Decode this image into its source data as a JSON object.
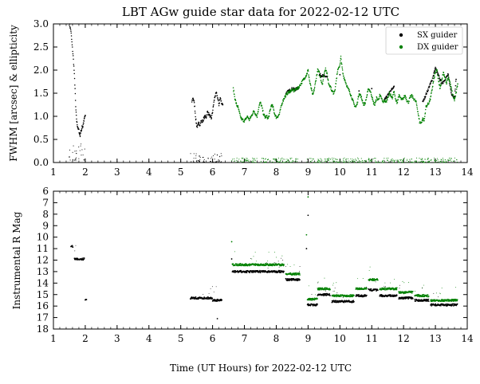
{
  "title": "LBT AGw guide star data for 2022-02-12 UTC",
  "xlabel": "Time (UT Hours) for 2022-02-12 UTC",
  "legend": {
    "sx_label": "SX guider",
    "dx_label": "DX guider"
  },
  "colors": {
    "sx": "#000000",
    "dx": "#008000"
  },
  "chart_data": [
    {
      "type": "scatter",
      "panel": "top",
      "ylabel": "FWHM [arcsec] & ellipticity",
      "xlim": [
        1,
        14
      ],
      "ylim": [
        0.0,
        3.0
      ],
      "x_ticks": [
        "1",
        "2",
        "3",
        "4",
        "5",
        "6",
        "7",
        "8",
        "9",
        "10",
        "11",
        "12",
        "13",
        "14"
      ],
      "y_ticks": [
        "0.0",
        "0.5",
        "1.0",
        "1.5",
        "2.0",
        "2.5",
        "3.0"
      ],
      "legend_position": "top-right",
      "series": [
        {
          "name": "SX guider",
          "kind": "fwhm",
          "points": [
            [
              1.5,
              3.0
            ],
            [
              1.55,
              2.85
            ],
            [
              1.58,
              2.6
            ],
            [
              1.62,
              2.3
            ],
            [
              1.65,
              2.0
            ],
            [
              1.68,
              1.6
            ],
            [
              1.7,
              1.2
            ],
            [
              1.72,
              1.0
            ],
            [
              1.74,
              0.85
            ],
            [
              1.76,
              0.78
            ],
            [
              1.78,
              0.72
            ],
            [
              1.8,
              0.7
            ],
            [
              1.82,
              0.62
            ],
            [
              1.84,
              0.58
            ],
            [
              1.86,
              0.7
            ],
            [
              1.88,
              0.66
            ],
            [
              1.9,
              0.8
            ],
            [
              1.92,
              0.76
            ],
            [
              1.94,
              0.85
            ],
            [
              1.96,
              0.9
            ],
            [
              1.98,
              0.98
            ],
            [
              2.0,
              1.02
            ],
            [
              5.35,
              1.3
            ],
            [
              5.38,
              1.4
            ],
            [
              5.41,
              1.35
            ],
            [
              5.44,
              1.2
            ],
            [
              5.47,
              0.95
            ],
            [
              5.5,
              0.8
            ],
            [
              5.53,
              0.78
            ],
            [
              5.56,
              0.85
            ],
            [
              5.6,
              0.82
            ],
            [
              5.64,
              0.9
            ],
            [
              5.68,
              0.88
            ],
            [
              5.72,
              0.95
            ],
            [
              5.76,
              1.0
            ],
            [
              5.8,
              0.98
            ],
            [
              5.84,
              1.1
            ],
            [
              5.88,
              1.05
            ],
            [
              5.92,
              1.0
            ],
            [
              5.96,
              0.95
            ],
            [
              6.0,
              1.1
            ],
            [
              6.04,
              1.3
            ],
            [
              6.08,
              1.45
            ],
            [
              6.12,
              1.5
            ],
            [
              6.16,
              1.4
            ],
            [
              6.2,
              1.25
            ],
            [
              6.24,
              1.4
            ],
            [
              6.28,
              1.3
            ],
            [
              6.32,
              1.25
            ],
            [
              8.3,
              1.5
            ],
            [
              8.4,
              1.55
            ],
            [
              8.5,
              1.6
            ],
            [
              8.6,
              1.58
            ],
            [
              8.7,
              1.62
            ],
            [
              9.35,
              1.9
            ],
            [
              9.6,
              1.85
            ],
            [
              10.0,
              1.9
            ],
            [
              10.6,
              1.55
            ],
            [
              11.0,
              1.6
            ],
            [
              11.4,
              1.35
            ],
            [
              11.7,
              1.65
            ],
            [
              12.6,
              1.3
            ],
            [
              12.9,
              1.8
            ],
            [
              13.0,
              2.05
            ],
            [
              13.2,
              1.7
            ],
            [
              13.4,
              1.9
            ],
            [
              13.5,
              1.5
            ],
            [
              13.6,
              1.4
            ],
            [
              13.65,
              1.8
            ]
          ]
        },
        {
          "name": "DX guider",
          "kind": "fwhm",
          "points": [
            [
              6.65,
              1.6
            ],
            [
              6.7,
              1.4
            ],
            [
              6.75,
              1.25
            ],
            [
              6.8,
              1.2
            ],
            [
              6.85,
              1.05
            ],
            [
              6.9,
              0.95
            ],
            [
              6.95,
              0.92
            ],
            [
              7.0,
              0.9
            ],
            [
              7.05,
              0.95
            ],
            [
              7.1,
              1.0
            ],
            [
              7.15,
              0.92
            ],
            [
              7.2,
              0.98
            ],
            [
              7.25,
              1.05
            ],
            [
              7.3,
              1.12
            ],
            [
              7.35,
              1.05
            ],
            [
              7.4,
              1.0
            ],
            [
              7.45,
              1.2
            ],
            [
              7.5,
              1.3
            ],
            [
              7.55,
              1.2
            ],
            [
              7.6,
              1.05
            ],
            [
              7.65,
              0.98
            ],
            [
              7.7,
              1.0
            ],
            [
              7.75,
              0.95
            ],
            [
              7.8,
              1.1
            ],
            [
              7.85,
              1.25
            ],
            [
              7.9,
              1.2
            ],
            [
              7.95,
              1.05
            ],
            [
              8.0,
              0.98
            ],
            [
              8.05,
              1.0
            ],
            [
              8.1,
              1.05
            ],
            [
              8.15,
              1.2
            ],
            [
              8.2,
              1.32
            ],
            [
              8.25,
              1.4
            ],
            [
              8.3,
              1.45
            ],
            [
              8.35,
              1.5
            ],
            [
              8.4,
              1.52
            ],
            [
              8.45,
              1.55
            ],
            [
              8.5,
              1.58
            ],
            [
              8.55,
              1.55
            ],
            [
              8.6,
              1.58
            ],
            [
              8.65,
              1.6
            ],
            [
              8.7,
              1.62
            ],
            [
              8.95,
              1.9
            ],
            [
              9.0,
              2.0
            ],
            [
              9.05,
              1.75
            ],
            [
              9.1,
              1.6
            ],
            [
              9.15,
              1.45
            ],
            [
              9.2,
              1.6
            ],
            [
              9.25,
              1.8
            ],
            [
              9.3,
              2.0
            ],
            [
              9.35,
              1.95
            ],
            [
              9.4,
              1.8
            ],
            [
              9.45,
              1.7
            ],
            [
              9.5,
              1.9
            ],
            [
              9.55,
              2.05
            ],
            [
              9.6,
              1.9
            ],
            [
              9.65,
              1.7
            ],
            [
              9.7,
              1.65
            ],
            [
              9.75,
              1.55
            ],
            [
              9.8,
              1.5
            ],
            [
              9.85,
              1.6
            ],
            [
              9.9,
              1.85
            ],
            [
              9.95,
              2.05
            ],
            [
              10.0,
              2.1
            ],
            [
              10.03,
              2.28
            ],
            [
              10.06,
              2.1
            ],
            [
              10.1,
              1.9
            ],
            [
              10.15,
              1.8
            ],
            [
              10.2,
              1.7
            ],
            [
              10.25,
              1.6
            ],
            [
              10.3,
              1.55
            ],
            [
              10.35,
              1.45
            ],
            [
              10.4,
              1.35
            ],
            [
              10.45,
              1.25
            ],
            [
              10.5,
              1.2
            ],
            [
              10.55,
              1.3
            ],
            [
              10.6,
              1.5
            ],
            [
              10.65,
              1.45
            ],
            [
              10.7,
              1.35
            ],
            [
              10.75,
              1.25
            ],
            [
              10.8,
              1.3
            ],
            [
              10.85,
              1.45
            ],
            [
              10.9,
              1.6
            ],
            [
              10.95,
              1.55
            ],
            [
              11.0,
              1.45
            ],
            [
              11.05,
              1.3
            ],
            [
              11.1,
              1.25
            ],
            [
              11.15,
              1.4
            ],
            [
              11.2,
              1.35
            ],
            [
              11.25,
              1.45
            ],
            [
              11.3,
              1.4
            ],
            [
              11.35,
              1.3
            ],
            [
              11.4,
              1.35
            ],
            [
              11.45,
              1.3
            ],
            [
              11.5,
              1.4
            ],
            [
              11.55,
              1.5
            ],
            [
              11.6,
              1.45
            ],
            [
              11.65,
              1.4
            ],
            [
              11.7,
              1.55
            ],
            [
              11.75,
              1.35
            ],
            [
              11.8,
              1.3
            ],
            [
              11.85,
              1.45
            ],
            [
              11.9,
              1.4
            ],
            [
              11.95,
              1.35
            ],
            [
              12.0,
              1.4
            ],
            [
              12.05,
              1.45
            ],
            [
              12.1,
              1.35
            ],
            [
              12.15,
              1.3
            ],
            [
              12.2,
              1.4
            ],
            [
              12.25,
              1.45
            ],
            [
              12.3,
              1.4
            ],
            [
              12.35,
              1.35
            ],
            [
              12.4,
              1.3
            ],
            [
              12.45,
              1.1
            ],
            [
              12.5,
              0.88
            ],
            [
              12.55,
              0.85
            ],
            [
              12.6,
              0.95
            ],
            [
              12.65,
              0.9
            ],
            [
              12.7,
              1.2
            ],
            [
              12.75,
              1.25
            ],
            [
              12.8,
              1.3
            ],
            [
              12.85,
              1.4
            ],
            [
              12.9,
              1.6
            ],
            [
              12.95,
              1.8
            ],
            [
              13.0,
              1.95
            ],
            [
              13.05,
              2.0
            ],
            [
              13.1,
              1.75
            ],
            [
              13.15,
              1.6
            ],
            [
              13.2,
              1.8
            ],
            [
              13.25,
              1.95
            ],
            [
              13.3,
              1.85
            ],
            [
              13.35,
              1.7
            ],
            [
              13.4,
              1.85
            ],
            [
              13.45,
              1.75
            ],
            [
              13.5,
              1.6
            ],
            [
              13.55,
              1.45
            ],
            [
              13.6,
              1.35
            ],
            [
              13.65,
              1.5
            ],
            [
              13.7,
              1.7
            ]
          ]
        },
        {
          "name": "SX guider",
          "kind": "ellipticity",
          "segments": [
            [
              1.5,
              2.0,
              0.05,
              0.4
            ],
            [
              5.3,
              6.3,
              0.0,
              0.2
            ]
          ]
        },
        {
          "name": "DX guider",
          "kind": "ellipticity",
          "segments": [
            [
              6.6,
              8.7,
              0.0,
              0.1
            ],
            [
              8.95,
              13.7,
              0.0,
              0.1
            ]
          ]
        }
      ]
    },
    {
      "type": "scatter",
      "panel": "bottom",
      "ylabel": "Instrumental R Mag",
      "xlim": [
        1,
        14
      ],
      "ylim": [
        18,
        6
      ],
      "x_ticks": [
        "1",
        "2",
        "3",
        "4",
        "5",
        "6",
        "7",
        "8",
        "9",
        "10",
        "11",
        "12",
        "13",
        "14"
      ],
      "y_ticks": [
        "6",
        "7",
        "8",
        "9",
        "10",
        "11",
        "12",
        "13",
        "14",
        "15",
        "16",
        "17",
        "18"
      ],
      "series": [
        {
          "name": "SX guider",
          "segments": [
            [
              1.55,
              1.62,
              10.8
            ],
            [
              1.66,
              1.98,
              11.9
            ],
            [
              2.0,
              2.05,
              15.4
            ],
            [
              5.3,
              6.0,
              15.3
            ],
            [
              6.0,
              6.3,
              15.5
            ],
            [
              6.62,
              8.25,
              13.0
            ],
            [
              8.3,
              8.75,
              13.7
            ],
            [
              8.98,
              9.3,
              15.9
            ],
            [
              9.3,
              9.7,
              15.0
            ],
            [
              9.75,
              10.45,
              15.6
            ],
            [
              10.5,
              10.85,
              15.1
            ],
            [
              10.9,
              11.2,
              14.6
            ],
            [
              11.25,
              11.8,
              15.1
            ],
            [
              11.85,
              12.3,
              15.3
            ],
            [
              12.35,
              12.8,
              15.5
            ],
            [
              12.85,
              13.7,
              15.9
            ]
          ],
          "outliers": [
            [
              6.6,
              11.9
            ],
            [
              6.15,
              17.1
            ],
            [
              8.95,
              11.0
            ],
            [
              9.0,
              8.1
            ]
          ]
        },
        {
          "name": "DX guider",
          "segments": [
            [
              6.62,
              8.25,
              12.4
            ],
            [
              8.3,
              8.75,
              13.2
            ],
            [
              8.98,
              9.3,
              15.4
            ],
            [
              9.3,
              9.7,
              14.5
            ],
            [
              9.75,
              10.45,
              15.1
            ],
            [
              10.5,
              10.85,
              14.5
            ],
            [
              10.9,
              11.2,
              13.7
            ],
            [
              11.25,
              11.8,
              14.5
            ],
            [
              11.85,
              12.3,
              14.8
            ],
            [
              12.35,
              12.8,
              15.1
            ],
            [
              12.85,
              13.7,
              15.5
            ]
          ],
          "outliers": [
            [
              6.6,
              10.4
            ],
            [
              8.95,
              9.8
            ],
            [
              9.0,
              6.5
            ]
          ]
        }
      ]
    }
  ]
}
